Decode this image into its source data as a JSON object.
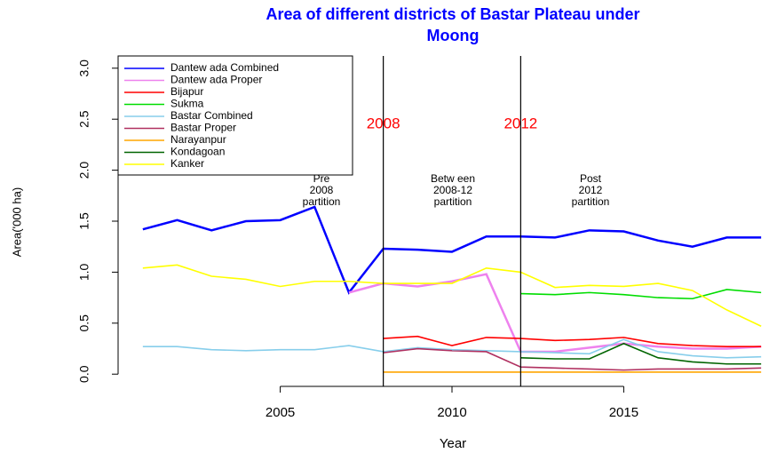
{
  "chart_data": {
    "type": "line",
    "title": "Area of different districts of Bastar Plateau under Moong",
    "x_label": "Year",
    "y_label": "Area('000 ha)",
    "x": [
      2001,
      2002,
      2003,
      2004,
      2005,
      2006,
      2007,
      2008,
      2009,
      2010,
      2011,
      2012,
      2013,
      2014,
      2015,
      2016,
      2017,
      2018,
      2019
    ],
    "xlim": [
      2000.28,
      2019.72
    ],
    "xticks": [
      2005,
      2010,
      2015
    ],
    "ylim": [
      -0.12,
      3.12
    ],
    "yticks": [
      {
        "value": 0,
        "label": "0.0"
      },
      {
        "value": 0.5,
        "label": "0.5"
      },
      {
        "value": 1,
        "label": "1.0"
      },
      {
        "value": 1.5,
        "label": "1.5"
      },
      {
        "value": 2,
        "label": "2.0"
      },
      {
        "value": 2.5,
        "label": "2.5"
      },
      {
        "value": 3,
        "label": "3.0"
      }
    ],
    "vlines": [
      2008,
      2012
    ],
    "annotations": [
      [
        "Pre",
        "2008",
        "partition"
      ],
      [
        "Betw een",
        "2008-12",
        "partition"
      ],
      [
        "Post",
        "2012",
        "partition"
      ]
    ],
    "legend": "top-left",
    "series": [
      {
        "name": "Dantew ada Combined",
        "color": "#0000ff",
        "values": [
          1.42,
          1.51,
          1.41,
          1.5,
          1.51,
          1.64,
          0.8,
          1.23,
          1.22,
          1.2,
          1.35,
          1.35,
          1.34,
          1.41,
          1.4,
          1.31,
          1.25,
          1.34,
          1.34
        ]
      },
      {
        "name": "Dantew ada Proper",
        "color": "#ee82ee",
        "values": [
          null,
          null,
          null,
          null,
          null,
          null,
          0.8,
          0.89,
          0.86,
          0.91,
          0.98,
          0.22,
          0.22,
          0.26,
          0.3,
          0.27,
          0.25,
          0.25,
          0.27
        ]
      },
      {
        "name": "Bijapur",
        "color": "#ff0000",
        "values": [
          null,
          null,
          null,
          null,
          null,
          null,
          null,
          0.35,
          0.37,
          0.28,
          0.36,
          0.35,
          0.33,
          0.34,
          0.36,
          0.3,
          0.28,
          0.27,
          0.27
        ]
      },
      {
        "name": "Sukma",
        "color": "#00dd00",
        "values": [
          null,
          null,
          null,
          null,
          null,
          null,
          null,
          null,
          null,
          null,
          null,
          0.79,
          0.78,
          0.8,
          0.78,
          0.75,
          0.74,
          0.83,
          0.8
        ]
      },
      {
        "name": "Bastar Combined",
        "color": "#87ceeb",
        "values": [
          0.27,
          0.27,
          0.24,
          0.23,
          0.24,
          0.24,
          0.28,
          0.22,
          0.26,
          0.24,
          0.23,
          0.22,
          0.21,
          0.2,
          0.34,
          0.22,
          0.18,
          0.16,
          0.17
        ]
      },
      {
        "name": "Bastar Proper",
        "color": "#b03060",
        "values": [
          null,
          null,
          null,
          null,
          null,
          null,
          null,
          0.21,
          0.25,
          0.23,
          0.22,
          0.07,
          0.06,
          0.05,
          0.04,
          0.05,
          0.05,
          0.05,
          0.06
        ]
      },
      {
        "name": "Narayanpur",
        "color": "#ffa500",
        "values": [
          null,
          null,
          null,
          null,
          null,
          null,
          null,
          0.02,
          0.02,
          0.02,
          0.02,
          0.02,
          0.02,
          0.02,
          0.02,
          0.02,
          0.02,
          0.02,
          0.02
        ]
      },
      {
        "name": "Kondagoan",
        "color": "#006400",
        "values": [
          null,
          null,
          null,
          null,
          null,
          null,
          null,
          null,
          null,
          null,
          null,
          0.16,
          0.15,
          0.15,
          0.3,
          0.16,
          0.12,
          0.1,
          0.1
        ]
      },
      {
        "name": "Kanker",
        "color": "#ffff00",
        "values": [
          1.04,
          1.07,
          0.96,
          0.93,
          0.86,
          0.91,
          0.91,
          0.89,
          0.89,
          0.89,
          1.04,
          1.0,
          0.85,
          0.87,
          0.86,
          0.89,
          0.82,
          0.63,
          0.47
        ]
      }
    ]
  }
}
